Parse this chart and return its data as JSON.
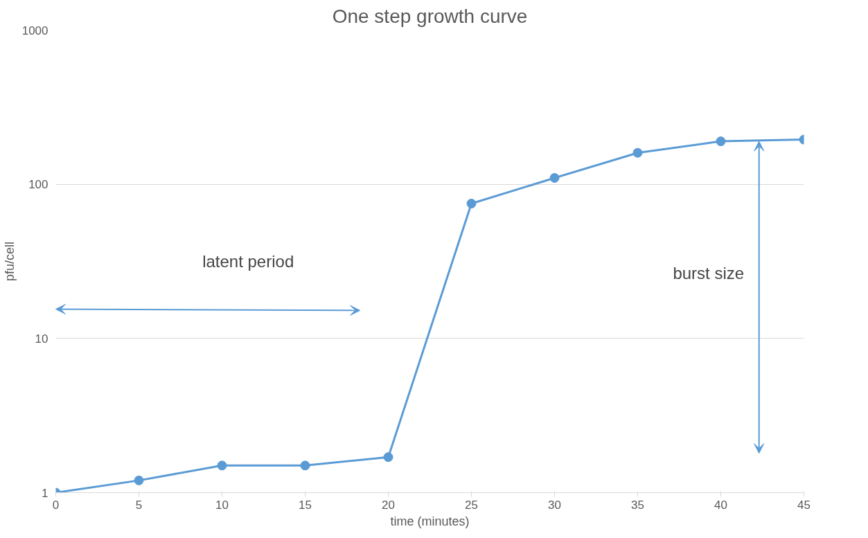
{
  "chart_data": {
    "type": "line",
    "title": "One step growth curve",
    "xlabel": "time (minutes)",
    "ylabel": "pfu/cell",
    "x": [
      0,
      5,
      10,
      15,
      20,
      25,
      30,
      35,
      40,
      45
    ],
    "series": [
      {
        "color": "#5b9bd5",
        "values": [
          1,
          1.2,
          1.5,
          1.5,
          1.7,
          75,
          110,
          160,
          190,
          195
        ]
      }
    ],
    "xlim": [
      0,
      45
    ],
    "xticks": [
      0,
      5,
      10,
      15,
      20,
      25,
      30,
      35,
      40,
      45
    ],
    "ylim": [
      1,
      1000
    ],
    "yticks": [
      1,
      10,
      100,
      1000
    ],
    "log": true,
    "grid": "y",
    "marker": "circle",
    "line_style": "solid",
    "annotations": [
      "latent period",
      "burst size"
    ]
  }
}
